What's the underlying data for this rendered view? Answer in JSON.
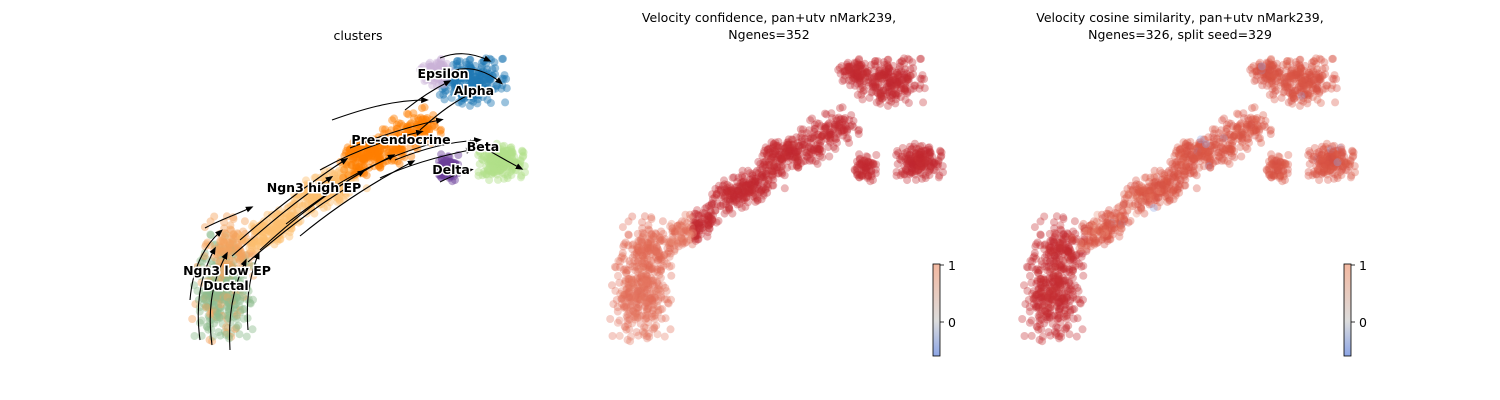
{
  "chart_data": [
    {
      "type": "scatter",
      "variant": "umap-embedding-with-velocity-stream",
      "title": "clusters",
      "legend": "on data",
      "clusters": [
        {
          "name": "Ductal",
          "color": "#8fbc8f"
        },
        {
          "name": "Ngn3 low EP",
          "color": "#f4a460"
        },
        {
          "name": "Ngn3 high EP",
          "color": "#fdbf6f"
        },
        {
          "name": "Pre-endocrine",
          "color": "#ff7f00"
        },
        {
          "name": "Beta",
          "color": "#b2df8a"
        },
        {
          "name": "Alpha",
          "color": "#1f78b4"
        },
        {
          "name": "Delta",
          "color": "#6a3d9a"
        },
        {
          "name": "Epsilon",
          "color": "#cab2d6"
        }
      ]
    },
    {
      "type": "scatter",
      "variant": "umap-embedding-colored",
      "title_lines": [
        "Velocity confidence, pan+utv nMark239,",
        "Ngenes=352"
      ],
      "colorbar": {
        "ticks": [
          "1",
          "0"
        ],
        "range": [
          -0.6,
          1
        ],
        "colormap": "coolwarm"
      }
    },
    {
      "type": "scatter",
      "variant": "umap-embedding-colored",
      "title_lines": [
        "Velocity cosine similarity, pan+utv nMark239,",
        "Ngenes=326, split seed=329"
      ],
      "colorbar": {
        "ticks": [
          "1",
          "0"
        ],
        "range": [
          -0.6,
          1
        ],
        "colormap": "coolwarm"
      }
    }
  ],
  "colors": {
    "high": "#c0252f",
    "mid": "#dd5c48",
    "low": "#f3b8a0",
    "neutral": "#dcdcdc",
    "negative": "#8da6e6",
    "arrow": "#000000"
  }
}
